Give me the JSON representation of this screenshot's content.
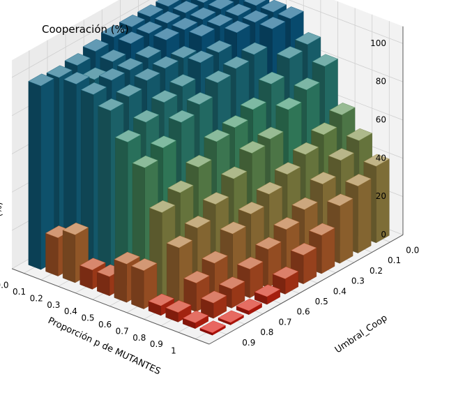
{
  "chart_data": {
    "type": "bar3d",
    "title": "Cooperación (%)",
    "xlabel": "Proporción p de MUTANTES",
    "ylabel": "Umbral_Coop",
    "zlabel": "",
    "z_axis_edge_label": "(%)",
    "x_ticks": [
      "0.0",
      "0.1",
      "0.2",
      "0.3",
      "0.4",
      "0.5",
      "0.6",
      "0.7",
      "0.8",
      "0.9",
      "1"
    ],
    "y_ticks": [
      "0.0",
      "0.1",
      "0.2",
      "0.3",
      "0.4",
      "0.5",
      "0.6",
      "0.7",
      "0.8",
      "0.9"
    ],
    "z_ticks": [
      "0",
      "20",
      "40",
      "60",
      "80",
      "100"
    ],
    "zlim": [
      0,
      100
    ],
    "grid": true,
    "colormap": "gist_earth_r-like (blue high, green mid, red low)",
    "x": [
      0,
      0.1,
      0.2,
      0.3,
      0.4,
      0.5,
      0.6,
      0.7,
      0.8,
      0.9,
      1
    ],
    "y": [
      0,
      0.1,
      0.2,
      0.3,
      0.4,
      0.5,
      0.6,
      0.7,
      0.8,
      0.9
    ],
    "values": [
      [
        100,
        100,
        100,
        100,
        100,
        100,
        98,
        96,
        95,
        96
      ],
      [
        100,
        100,
        100,
        100,
        100,
        100,
        96,
        92,
        95,
        20
      ],
      [
        100,
        100,
        100,
        100,
        100,
        96,
        95,
        95,
        93,
        25
      ],
      [
        100,
        100,
        100,
        100,
        94,
        94,
        93,
        90,
        88,
        10
      ],
      [
        100,
        100,
        100,
        95,
        95,
        88,
        85,
        80,
        75,
        10
      ],
      [
        100,
        100,
        92,
        90,
        88,
        82,
        78,
        70,
        65,
        20
      ],
      [
        90,
        88,
        80,
        72,
        68,
        66,
        58,
        50,
        45,
        20
      ],
      [
        82,
        75,
        70,
        60,
        58,
        50,
        42,
        35,
        30,
        5
      ],
      [
        60,
        55,
        50,
        45,
        40,
        35,
        30,
        20,
        15,
        5
      ],
      [
        50,
        45,
        38,
        30,
        25,
        20,
        15,
        10,
        8,
        3
      ],
      [
        40,
        35,
        30,
        20,
        15,
        8,
        4,
        2,
        1,
        0
      ]
    ]
  }
}
